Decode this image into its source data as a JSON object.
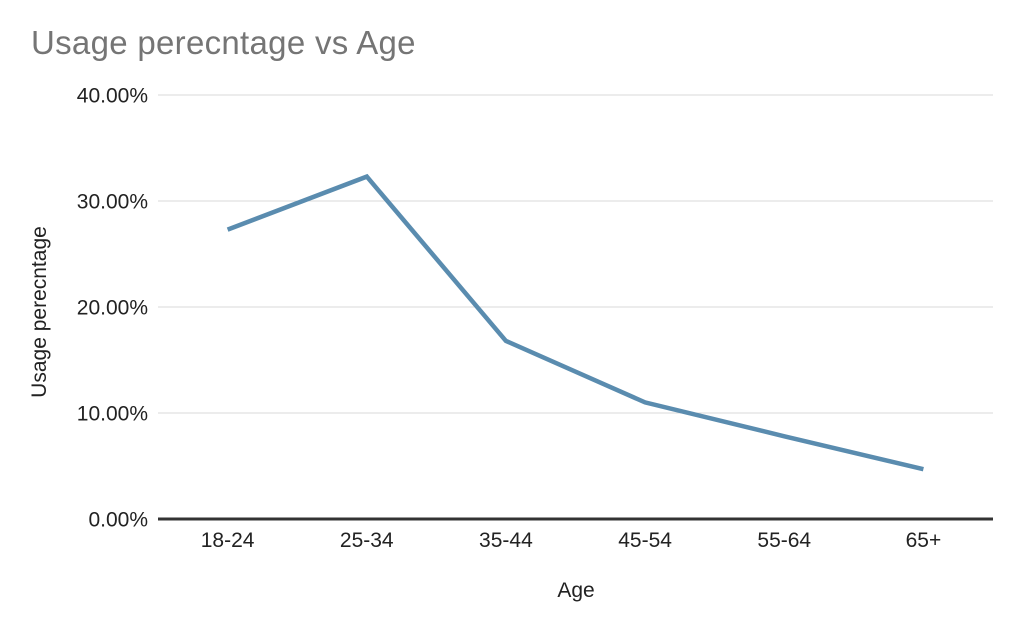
{
  "chart_data": {
    "type": "line",
    "title": "Usage perecntage vs Age",
    "xlabel": "Age",
    "ylabel": "Usage perecntage",
    "categories": [
      "18-24",
      "25-34",
      "35-44",
      "45-54",
      "55-64",
      "65+"
    ],
    "series": [
      {
        "name": "Usage perecntage",
        "values": [
          27.3,
          32.3,
          16.8,
          11.0,
          7.8,
          4.7
        ]
      }
    ],
    "ylim": [
      0,
      40
    ],
    "y_ticks": [
      {
        "value": 0,
        "label": "0.00%"
      },
      {
        "value": 10,
        "label": "10.00%"
      },
      {
        "value": 20,
        "label": "20.00%"
      },
      {
        "value": 30,
        "label": "30.00%"
      },
      {
        "value": 40,
        "label": "40.00%"
      }
    ],
    "grid": true,
    "legend": "none"
  },
  "style": {
    "background": "#ffffff",
    "title_color": "#757575",
    "label_color": "#222222",
    "gridline_color": "#dadada",
    "axis_line_color": "#333333",
    "line_color": "#5a8caf",
    "line_width": 4.5
  }
}
